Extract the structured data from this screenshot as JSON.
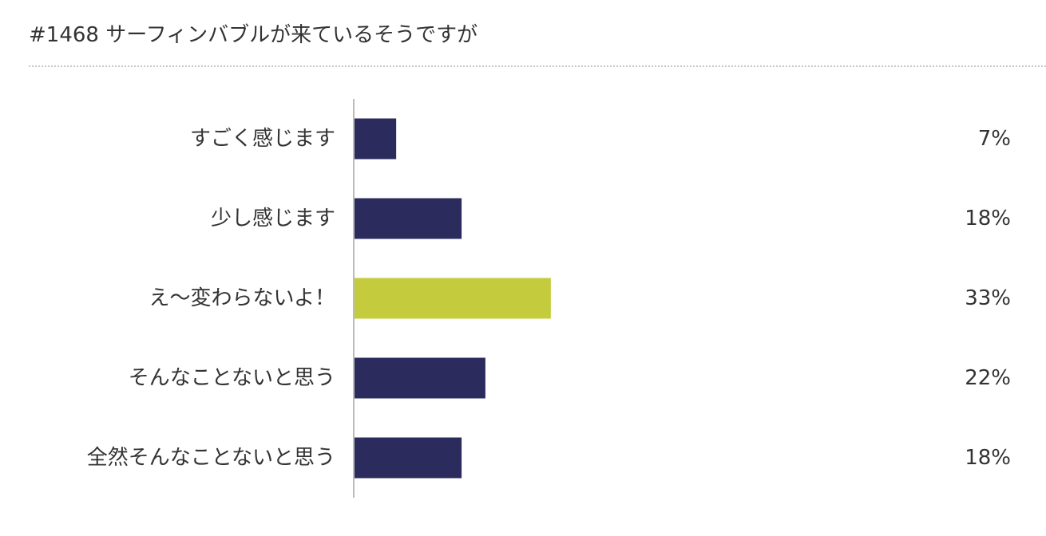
{
  "title": "#1468  サーフィンバブルが来ているそうですが",
  "colors": {
    "bar_default": "#2b2b5e",
    "bar_highlight": "#c4cc3e",
    "axis": "#bbbbbb",
    "text": "#333333"
  },
  "chart_data": {
    "type": "bar",
    "orientation": "horizontal",
    "title": "#1468  サーフィンバブルが来ているそうですが",
    "categories": [
      "すごく感じます",
      "少し感じます",
      "え～変わらないよ！",
      "そんなことないと思う",
      "全然そんなことないと思う"
    ],
    "values": [
      7,
      18,
      33,
      22,
      18
    ],
    "value_labels": [
      "7%",
      "18%",
      "33%",
      "22%",
      "18%"
    ],
    "highlight_index": 2,
    "xlim": [
      0,
      100
    ],
    "grid": false,
    "legend": "none"
  }
}
